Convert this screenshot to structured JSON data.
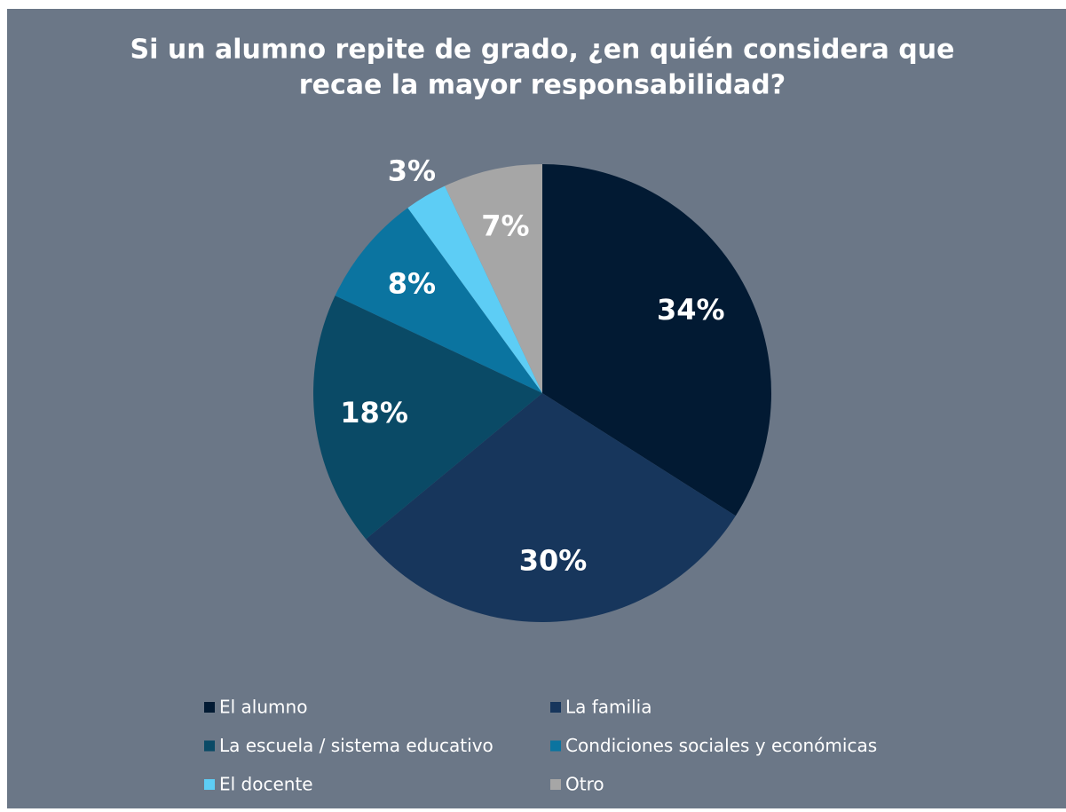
{
  "chart_data": {
    "type": "pie",
    "title": [
      "Si un alumno repite de grado, ¿en quién considera que",
      "recae la mayor responsabilidad?"
    ],
    "categories": [
      "El alumno",
      "La familia",
      "La escuela / sistema educativo",
      "Condiciones sociales y económicas",
      "El docente",
      "Otro"
    ],
    "values": [
      34,
      30,
      18,
      8,
      3,
      7
    ],
    "value_labels": [
      "34%",
      "30%",
      "18%",
      "8%",
      "3%",
      "7%"
    ],
    "colors": [
      "#021a33",
      "#17365c",
      "#0a4a66",
      "#0b74a0",
      "#5dcdf5",
      "#a6a6a6"
    ],
    "legend": "bottom"
  }
}
